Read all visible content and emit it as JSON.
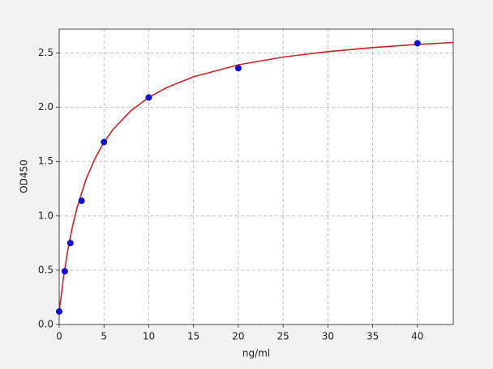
{
  "chart_data": {
    "type": "scatter",
    "x_label": "ng/ml",
    "y_label": "OD450",
    "xlim": [
      0,
      44
    ],
    "ylim": [
      0,
      2.72
    ],
    "xticks": [
      0,
      5,
      10,
      15,
      20,
      25,
      30,
      35,
      40
    ],
    "yticks": [
      {
        "value": 0,
        "label": "0.0"
      },
      0.5,
      {
        "value": 1,
        "label": "1.0"
      },
      1.5,
      {
        "value": 2,
        "label": "2.0"
      },
      2.5
    ],
    "grid": true,
    "series": [
      {
        "mode": "markers",
        "color": "#1010d0",
        "x": [
          0,
          0.625,
          1.25,
          2.5,
          5,
          10,
          20,
          40
        ],
        "values": [
          0.12,
          0.49,
          0.75,
          1.14,
          1.68,
          2.09,
          2.36,
          2.59
        ]
      },
      {
        "mode": "line",
        "color": "#cc2222",
        "x": [
          0,
          0.5,
          1,
          1.5,
          2,
          3,
          4,
          5,
          6,
          8,
          10,
          12,
          15,
          20,
          25,
          30,
          35,
          40,
          44
        ],
        "values": [
          0.12,
          0.447,
          0.703,
          0.909,
          1.077,
          1.338,
          1.53,
          1.678,
          1.795,
          1.968,
          2.091,
          2.182,
          2.281,
          2.391,
          2.463,
          2.513,
          2.55,
          2.579,
          2.597
        ]
      }
    ]
  }
}
